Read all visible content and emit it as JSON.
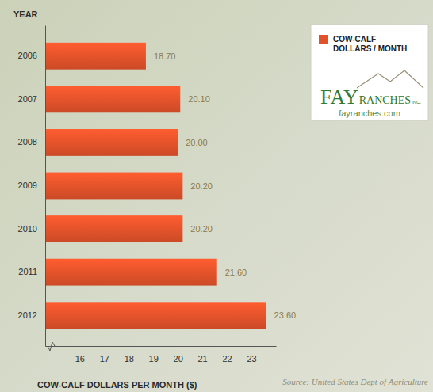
{
  "chart_data": {
    "type": "bar",
    "orientation": "horizontal",
    "categories": [
      "2006",
      "2007",
      "2008",
      "2009",
      "2010",
      "2011",
      "2012"
    ],
    "series": [
      {
        "name": "COW-CALF DOLLARS / MONTH",
        "color": "#e2522a",
        "values": [
          18.7,
          20.1,
          20.0,
          20.2,
          20.2,
          21.6,
          23.6
        ],
        "value_labels": [
          "18.70",
          "20.10",
          "20.00",
          "20.20",
          "20.20",
          "21.60",
          "23.60"
        ]
      }
    ],
    "xlabel": "COW-CALF DOLLARS PER MONTH ($)",
    "ylabel": "YEAR",
    "xlim": [
      14.6,
      24.0
    ],
    "xticks": [
      16,
      17,
      18,
      19,
      20,
      21,
      22,
      23
    ],
    "grid": false,
    "data_labels": true,
    "legend": "top-right",
    "annotations": {
      "logo": [
        "FAY",
        "RANCHES",
        "INC."
      ],
      "website": "fayranches.com",
      "source": "Source: United States Dept of Agriculture"
    }
  }
}
